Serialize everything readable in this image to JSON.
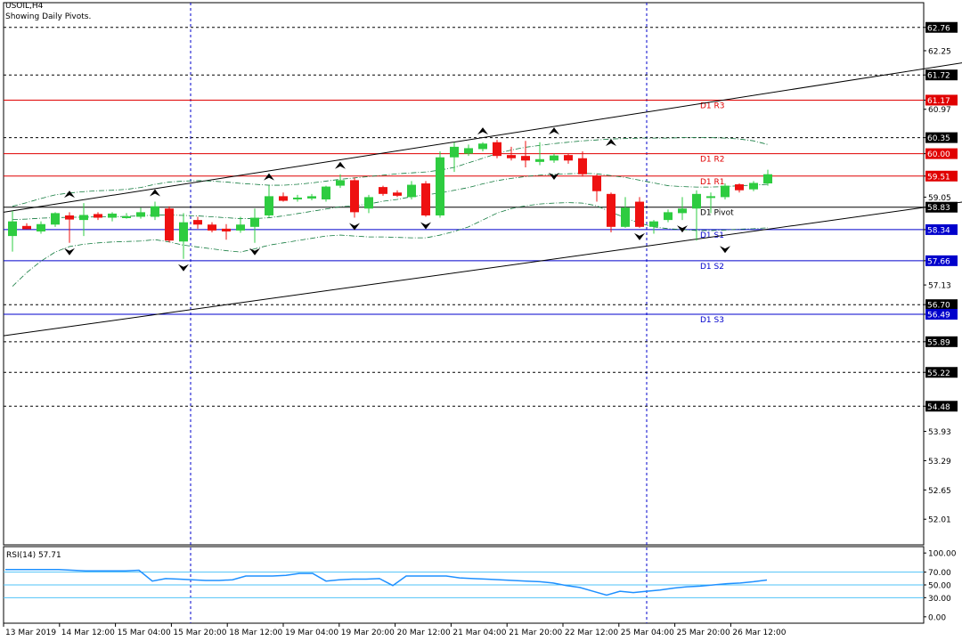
{
  "header": {
    "symbol": "USOIL,H4",
    "subtitle": "Showing Daily Pivots."
  },
  "colors": {
    "bull": "#2ecc40",
    "bear": "#ee1111",
    "resistance": "#e00000",
    "support": "#0000cc",
    "pivot": "#000000",
    "grid_dashed": "#000000",
    "time_separator": "#0000cc",
    "rsi_line": "#1e90ff",
    "rsi_levels": "#4fc3f7",
    "envelope": "#117a3d"
  },
  "chart_data": [
    {
      "type": "candlestick",
      "ylim": [
        51.45,
        63.3
      ],
      "y_ticks": [
        "62.76",
        "62.25",
        "61.72",
        "61.17",
        "60.97",
        "60.35",
        "60.00",
        "59.51",
        "59.05",
        "58.83",
        "58.34",
        "57.66",
        "57.13",
        "56.70",
        "56.49",
        "55.89",
        "55.22",
        "54.48",
        "53.93",
        "53.29",
        "52.65",
        "52.01"
      ],
      "highlighted_ticks": [
        {
          "label": "62.76",
          "value": 62.76,
          "color": "#000000"
        },
        {
          "label": "61.72",
          "value": 61.72,
          "color": "#000000"
        },
        {
          "label": "61.17",
          "value": 61.17,
          "color": "#e00000"
        },
        {
          "label": "60.35",
          "value": 60.35,
          "color": "#000000"
        },
        {
          "label": "60.00",
          "value": 60.0,
          "color": "#e00000"
        },
        {
          "label": "59.51",
          "value": 59.51,
          "color": "#e00000"
        },
        {
          "label": "58.83",
          "value": 58.83,
          "color": "#000000"
        },
        {
          "label": "58.34",
          "value": 58.34,
          "color": "#0000cc"
        },
        {
          "label": "57.66",
          "value": 57.66,
          "color": "#0000cc"
        },
        {
          "label": "56.70",
          "value": 56.7,
          "color": "#000000"
        },
        {
          "label": "56.49",
          "value": 56.49,
          "color": "#0000cc"
        },
        {
          "label": "55.89",
          "value": 55.89,
          "color": "#000000"
        },
        {
          "label": "55.22",
          "value": 55.22,
          "color": "#000000"
        },
        {
          "label": "54.48",
          "value": 54.48,
          "color": "#000000"
        }
      ],
      "dashed_levels": [
        62.76,
        61.72,
        60.35,
        56.7,
        55.89,
        55.22,
        54.48
      ],
      "pivots": [
        {
          "label": "D1 R3",
          "value": 61.17,
          "color": "#e00000"
        },
        {
          "label": "D1 R2",
          "value": 60.0,
          "color": "#e00000"
        },
        {
          "label": "D1 R1",
          "value": 59.51,
          "color": "#e00000"
        },
        {
          "label": "D1 Pivot",
          "value": 58.83,
          "color": "#000000"
        },
        {
          "label": "D1 S1",
          "value": 58.34,
          "color": "#0000cc"
        },
        {
          "label": "D1 S2",
          "value": 57.66,
          "color": "#0000cc"
        },
        {
          "label": "D1 S3",
          "value": 56.49,
          "color": "#0000cc"
        }
      ],
      "x_labels": [
        "13 Mar 2019",
        "14 Mar 12:00",
        "15 Mar 04:00",
        "15 Mar 20:00",
        "18 Mar 12:00",
        "19 Mar 04:00",
        "19 Mar 20:00",
        "20 Mar 12:00",
        "21 Mar 04:00",
        "21 Mar 20:00",
        "22 Mar 12:00",
        "25 Mar 04:00",
        "25 Mar 20:00",
        "26 Mar 12:00"
      ],
      "day_separators": [
        12.5,
        44.5
      ],
      "channel": {
        "upper": {
          "from": [
            0,
            58.72
          ],
          "to": [
            68,
            62.05
          ]
        },
        "lower": {
          "from": [
            0,
            56.02
          ],
          "to": [
            68,
            59.0
          ]
        }
      },
      "candles": [
        {
          "o": 58.2,
          "h": 58.75,
          "l": 57.86,
          "c": 58.52
        },
        {
          "o": 58.42,
          "h": 58.48,
          "l": 58.35,
          "c": 58.35
        },
        {
          "o": 58.3,
          "h": 58.52,
          "l": 58.25,
          "c": 58.46
        },
        {
          "o": 58.45,
          "h": 58.72,
          "l": 58.4,
          "c": 58.7
        },
        {
          "o": 58.65,
          "h": 58.72,
          "l": 58.05,
          "c": 58.56
        },
        {
          "o": 58.55,
          "h": 58.92,
          "l": 58.2,
          "c": 58.66
        },
        {
          "o": 58.68,
          "h": 58.72,
          "l": 58.55,
          "c": 58.6
        },
        {
          "o": 58.6,
          "h": 58.72,
          "l": 58.52,
          "c": 58.69
        },
        {
          "o": 58.62,
          "h": 58.7,
          "l": 58.58,
          "c": 58.63
        },
        {
          "o": 58.62,
          "h": 58.82,
          "l": 58.58,
          "c": 58.72
        },
        {
          "o": 58.62,
          "h": 58.95,
          "l": 58.55,
          "c": 58.85
        },
        {
          "o": 58.8,
          "h": 58.85,
          "l": 58.06,
          "c": 58.1
        },
        {
          "o": 58.08,
          "h": 58.7,
          "l": 57.7,
          "c": 58.5
        },
        {
          "o": 58.55,
          "h": 58.62,
          "l": 58.36,
          "c": 58.45
        },
        {
          "o": 58.45,
          "h": 58.5,
          "l": 58.28,
          "c": 58.32
        },
        {
          "o": 58.36,
          "h": 58.46,
          "l": 58.12,
          "c": 58.3
        },
        {
          "o": 58.32,
          "h": 58.62,
          "l": 58.27,
          "c": 58.45
        },
        {
          "o": 58.4,
          "h": 58.8,
          "l": 58.05,
          "c": 58.6
        },
        {
          "o": 58.65,
          "h": 59.3,
          "l": 58.6,
          "c": 59.07
        },
        {
          "o": 59.07,
          "h": 59.15,
          "l": 58.95,
          "c": 58.97
        },
        {
          "o": 59.0,
          "h": 59.1,
          "l": 58.95,
          "c": 59.04
        },
        {
          "o": 59.02,
          "h": 59.12,
          "l": 58.98,
          "c": 59.07
        },
        {
          "o": 59.0,
          "h": 59.3,
          "l": 58.95,
          "c": 59.28
        },
        {
          "o": 59.3,
          "h": 59.55,
          "l": 59.25,
          "c": 59.42
        },
        {
          "o": 59.42,
          "h": 59.48,
          "l": 58.6,
          "c": 58.72
        },
        {
          "o": 58.8,
          "h": 59.1,
          "l": 58.7,
          "c": 59.05
        },
        {
          "o": 59.27,
          "h": 59.3,
          "l": 59.08,
          "c": 59.12
        },
        {
          "o": 59.15,
          "h": 59.2,
          "l": 59.05,
          "c": 59.08
        },
        {
          "o": 59.05,
          "h": 59.4,
          "l": 59.0,
          "c": 59.32
        },
        {
          "o": 59.35,
          "h": 59.4,
          "l": 58.62,
          "c": 58.65
        },
        {
          "o": 58.65,
          "h": 60.05,
          "l": 58.6,
          "c": 59.92
        },
        {
          "o": 59.92,
          "h": 60.25,
          "l": 59.6,
          "c": 60.15
        },
        {
          "o": 60.0,
          "h": 60.2,
          "l": 59.95,
          "c": 60.12
        },
        {
          "o": 60.1,
          "h": 60.25,
          "l": 60.05,
          "c": 60.22
        },
        {
          "o": 60.25,
          "h": 60.3,
          "l": 59.9,
          "c": 59.95
        },
        {
          "o": 59.97,
          "h": 60.15,
          "l": 59.85,
          "c": 59.9
        },
        {
          "o": 59.95,
          "h": 60.28,
          "l": 59.7,
          "c": 59.85
        },
        {
          "o": 59.82,
          "h": 60.25,
          "l": 59.75,
          "c": 59.88
        },
        {
          "o": 59.85,
          "h": 60.0,
          "l": 59.8,
          "c": 59.96
        },
        {
          "o": 59.97,
          "h": 60.0,
          "l": 59.78,
          "c": 59.85
        },
        {
          "o": 59.9,
          "h": 60.05,
          "l": 59.5,
          "c": 59.55
        },
        {
          "o": 59.52,
          "h": 59.55,
          "l": 58.95,
          "c": 59.18
        },
        {
          "o": 59.12,
          "h": 59.15,
          "l": 58.28,
          "c": 58.4
        },
        {
          "o": 58.4,
          "h": 59.05,
          "l": 58.38,
          "c": 58.82
        },
        {
          "o": 58.95,
          "h": 59.05,
          "l": 58.38,
          "c": 58.4
        },
        {
          "o": 58.4,
          "h": 58.55,
          "l": 58.25,
          "c": 58.52
        },
        {
          "o": 58.55,
          "h": 58.78,
          "l": 58.5,
          "c": 58.72
        },
        {
          "o": 58.7,
          "h": 59.05,
          "l": 58.55,
          "c": 58.8
        },
        {
          "o": 58.8,
          "h": 59.2,
          "l": 58.1,
          "c": 59.12
        },
        {
          "o": 59.05,
          "h": 59.15,
          "l": 58.7,
          "c": 59.07
        },
        {
          "o": 59.05,
          "h": 59.35,
          "l": 59.0,
          "c": 59.3
        },
        {
          "o": 59.33,
          "h": 59.35,
          "l": 59.15,
          "c": 59.2
        },
        {
          "o": 59.22,
          "h": 59.4,
          "l": 59.18,
          "c": 59.36
        },
        {
          "o": 59.35,
          "h": 59.65,
          "l": 59.3,
          "c": 59.55
        }
      ],
      "fractals_up": [
        {
          "i": 4,
          "v": 58.92
        },
        {
          "i": 10,
          "v": 58.95
        },
        {
          "i": 18,
          "v": 59.3
        },
        {
          "i": 23,
          "v": 59.55
        },
        {
          "i": 33,
          "v": 60.3
        },
        {
          "i": 38,
          "v": 60.3
        },
        {
          "i": 42,
          "v": 60.05
        }
      ],
      "fractals_down": [
        {
          "i": 4,
          "v": 58.05
        },
        {
          "i": 12,
          "v": 57.7
        },
        {
          "i": 17,
          "v": 58.05
        },
        {
          "i": 24,
          "v": 58.6
        },
        {
          "i": 29,
          "v": 58.62
        },
        {
          "i": 38,
          "v": 59.7
        },
        {
          "i": 44,
          "v": 58.38
        },
        {
          "i": 47,
          "v": 58.55
        },
        {
          "i": 50,
          "v": 58.1
        }
      ],
      "envelope_upper": [
        58.85,
        58.93,
        59.02,
        59.1,
        59.14,
        59.17,
        59.19,
        59.2,
        59.22,
        59.26,
        59.33,
        59.38,
        59.4,
        59.41,
        59.4,
        59.38,
        59.35,
        59.33,
        59.31,
        59.31,
        59.33,
        59.36,
        59.4,
        59.44,
        59.47,
        59.5,
        59.53,
        59.56,
        59.58,
        59.6,
        59.64,
        59.7,
        59.8,
        59.9,
        60.0,
        60.08,
        60.14,
        60.18,
        60.22,
        60.25,
        60.28,
        60.3,
        60.32,
        60.33,
        60.34,
        60.34,
        60.34,
        60.35,
        60.35,
        60.35,
        60.34,
        60.32,
        60.28,
        60.2
      ],
      "envelope_middle": [
        58.56,
        58.57,
        58.59,
        58.6,
        58.61,
        58.61,
        58.62,
        58.62,
        58.63,
        58.64,
        58.66,
        58.66,
        58.65,
        58.64,
        58.62,
        58.6,
        58.58,
        58.58,
        58.6,
        58.64,
        58.69,
        58.74,
        58.79,
        58.84,
        58.86,
        58.9,
        58.96,
        59.0,
        59.06,
        59.1,
        59.14,
        59.2,
        59.26,
        59.34,
        59.41,
        59.46,
        59.5,
        59.53,
        59.55,
        59.56,
        59.57,
        59.56,
        59.52,
        59.48,
        59.42,
        59.36,
        59.3,
        59.28,
        59.27,
        59.27,
        59.28,
        59.3,
        59.31,
        59.33
      ],
      "envelope_lower": [
        57.1,
        57.4,
        57.65,
        57.85,
        57.97,
        58.02,
        58.05,
        58.07,
        58.08,
        58.09,
        58.12,
        58.07,
        58.0,
        57.96,
        57.92,
        57.88,
        57.85,
        57.92,
        58.0,
        58.05,
        58.1,
        58.15,
        58.2,
        58.22,
        58.2,
        58.18,
        58.18,
        58.17,
        58.16,
        58.16,
        58.22,
        58.3,
        58.4,
        58.55,
        58.7,
        58.8,
        58.86,
        58.9,
        58.92,
        58.93,
        58.92,
        58.86,
        58.72,
        58.6,
        58.48,
        58.4,
        58.36,
        58.34,
        58.32,
        58.32,
        58.33,
        58.35,
        58.36,
        58.38
      ]
    },
    {
      "type": "line",
      "title": "RSI(14) 57.71",
      "ylim": [
        -10,
        110
      ],
      "y_ticks": [
        "100.00",
        "70.00",
        "50.00",
        "30.00",
        "0.00"
      ],
      "levels": [
        70,
        50,
        30
      ],
      "series": [
        {
          "values": [
            74,
            74,
            74,
            74,
            74,
            73,
            72,
            72,
            72,
            72,
            73,
            56,
            60,
            59,
            58,
            57,
            57,
            58,
            64,
            64,
            64,
            65,
            68,
            68,
            56,
            58,
            59,
            59,
            60,
            49,
            64,
            64,
            64,
            64,
            61,
            60,
            59,
            58,
            57,
            56,
            55,
            53,
            49,
            46,
            40,
            34,
            40,
            38,
            40,
            42,
            45,
            47,
            48,
            50,
            52,
            53,
            55,
            57.71
          ]
        }
      ]
    }
  ]
}
